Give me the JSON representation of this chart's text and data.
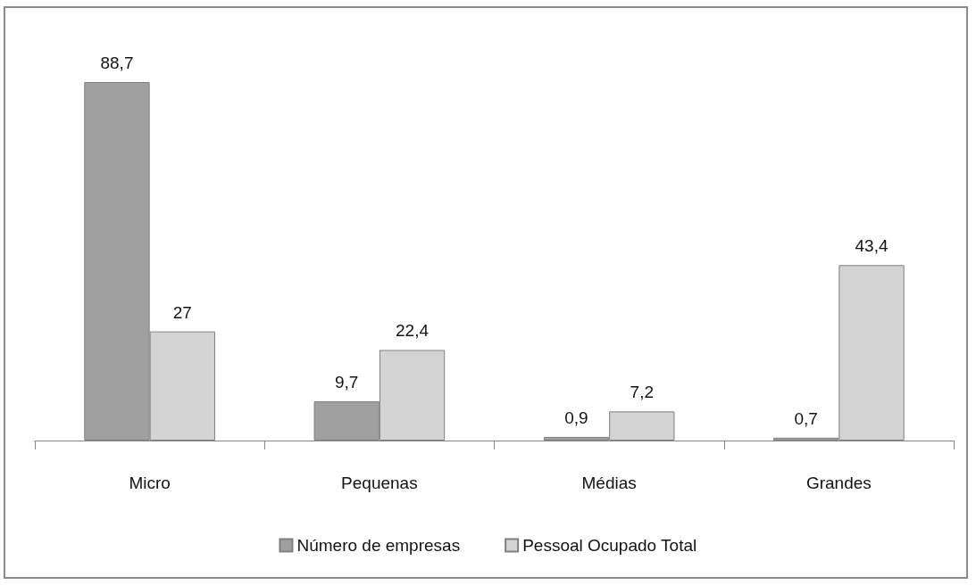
{
  "chart_data": {
    "type": "bar",
    "categories": [
      "Micro",
      "Pequenas",
      "Médias",
      "Grandes"
    ],
    "series": [
      {
        "name": "Número de empresas",
        "color": "#a0a0a0",
        "values": [
          88.7,
          9.7,
          0.9,
          0.7
        ],
        "value_labels": [
          "88,7",
          "9,7",
          "0,9",
          "0,7"
        ]
      },
      {
        "name": "Pessoal Ocupado Total",
        "color": "#d4d4d4",
        "values": [
          27,
          22.4,
          7.2,
          43.4
        ],
        "value_labels": [
          "27",
          "22,4",
          "7,2",
          "43,4"
        ]
      }
    ],
    "legend": "bottom",
    "tick_labels": "x"
  }
}
